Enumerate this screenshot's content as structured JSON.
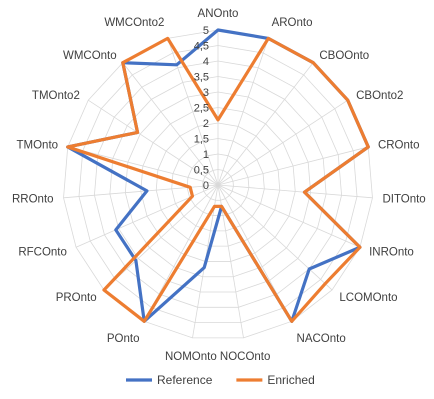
{
  "chart_data": {
    "type": "radar",
    "title": "",
    "categories": [
      "ANOnto",
      "AROnto",
      "CBOOnto",
      "CBOnto2",
      "CROnto",
      "DITOnto",
      "INROnto",
      "LCOMOnto",
      "NACOnto",
      "NOCOnto",
      "NOMOnto",
      "POnto",
      "PROnto",
      "RFCOnto",
      "RROnto",
      "TMOnto",
      "TMOnto2",
      "WMCOnto",
      "WMCOnto2"
    ],
    "rlim": [
      0,
      5
    ],
    "ticks": [
      "0",
      "0,5",
      "1",
      "1,5",
      "2",
      "2,5",
      "3",
      "3,5",
      "4",
      "4,5",
      "5"
    ],
    "grid": true,
    "legend_position": "bottom",
    "series": [
      {
        "name": "Reference",
        "color": "#4472c4",
        "values": [
          5,
          5,
          5,
          5,
          5,
          2.8,
          5,
          4,
          5,
          0.7,
          2.7,
          5,
          3.6,
          3.6,
          2.3,
          5,
          3.1,
          5,
          4.1
        ]
      },
      {
        "name": "Enriched",
        "color": "#ed7d31",
        "values": [
          2.1,
          5,
          5,
          5,
          5,
          2.8,
          5,
          4.7,
          5,
          0.7,
          0.7,
          5,
          5,
          0.9,
          0.9,
          5,
          3.1,
          5,
          5
        ]
      }
    ]
  }
}
